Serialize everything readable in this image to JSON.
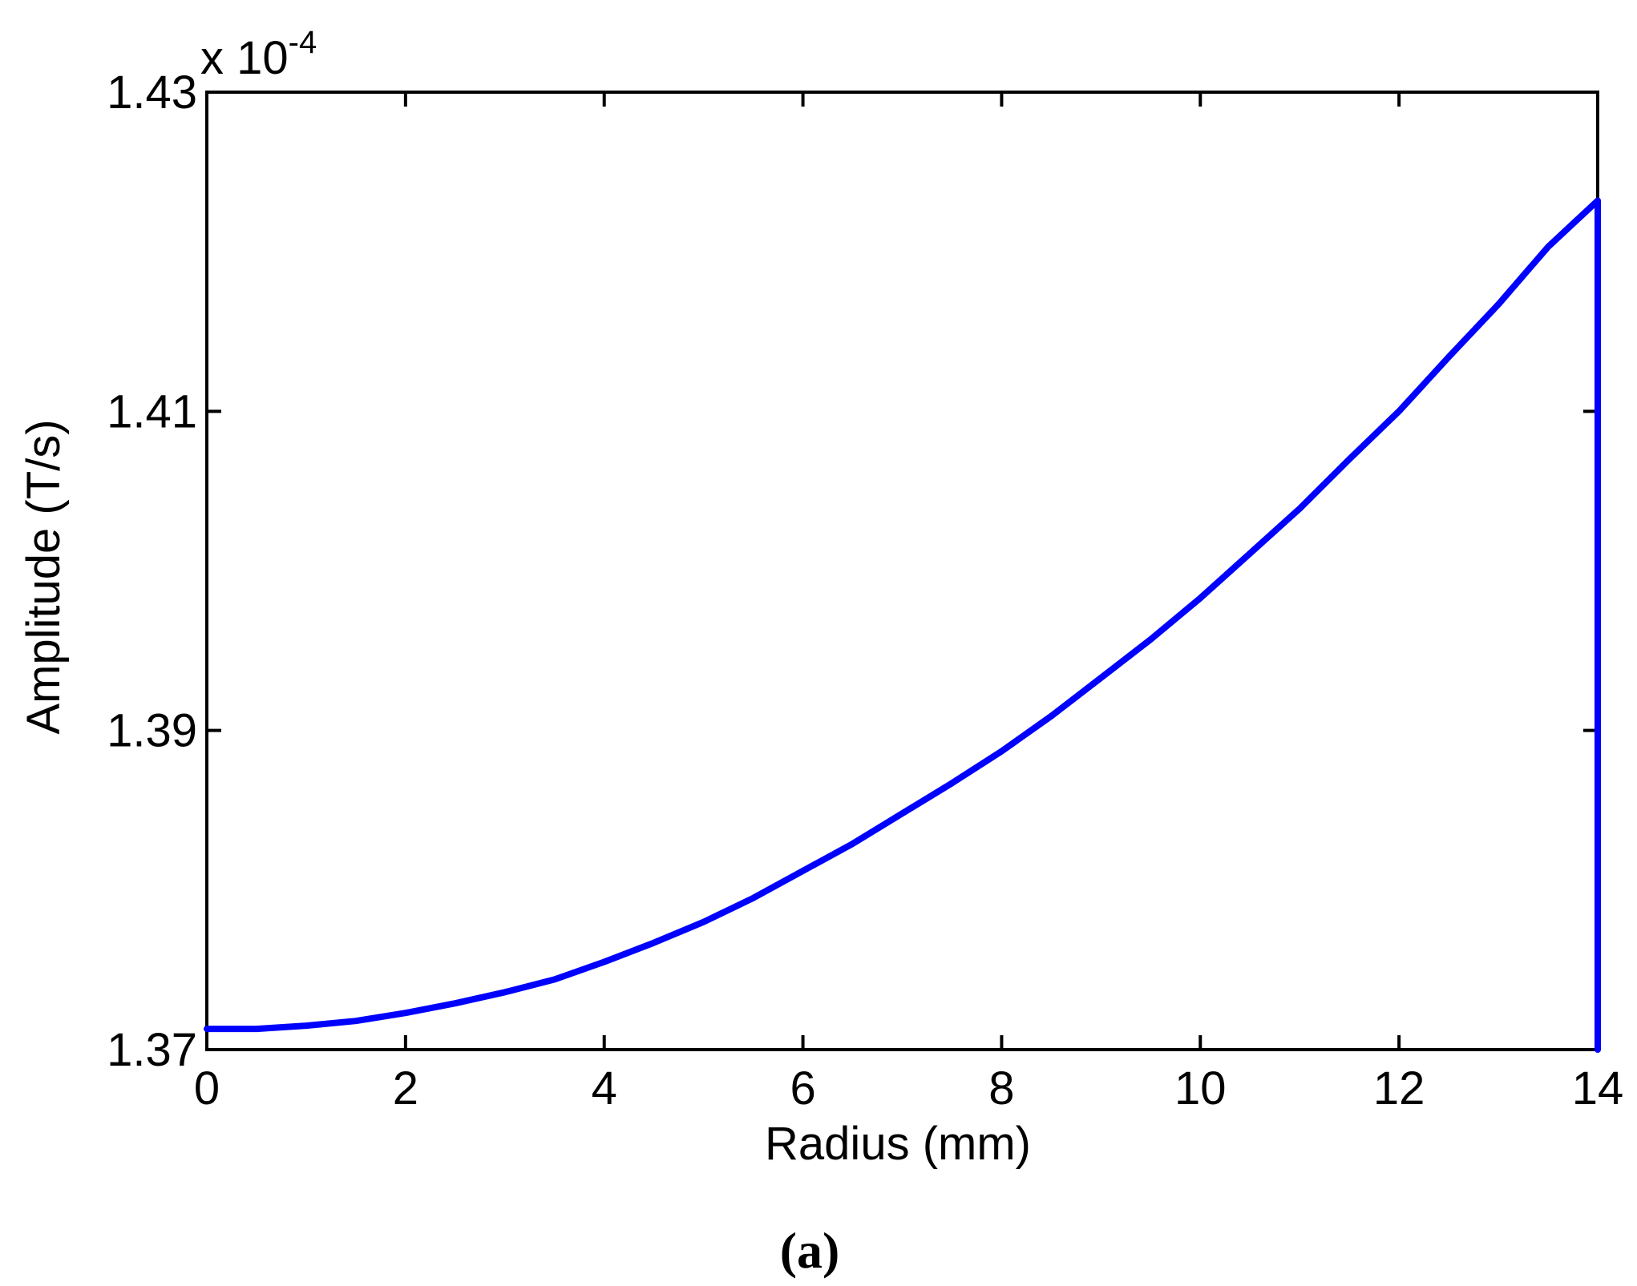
{
  "chart_data": {
    "type": "line",
    "title": "",
    "xlabel": "Radius (mm)",
    "ylabel": "Amplitude (T/s)",
    "y_multiplier_base": "x 10",
    "y_multiplier_exp": "-4",
    "panel_label": "(a)",
    "xlim": [
      0,
      14
    ],
    "ylim": [
      1.37,
      1.43
    ],
    "xticks": [
      0,
      2,
      4,
      6,
      8,
      10,
      12,
      14
    ],
    "xtick_labels": [
      "0",
      "2",
      "4",
      "6",
      "8",
      "10",
      "12",
      "14"
    ],
    "yticks": [
      1.37,
      1.39,
      1.41,
      1.43
    ],
    "ytick_labels": [
      "1.37",
      "1.39",
      "1.41",
      "1.43"
    ],
    "grid": false,
    "line_color": "#0000ff",
    "series": [
      {
        "x": [
          0,
          0.5,
          1,
          1.5,
          2,
          2.5,
          3,
          3.5,
          4,
          4.5,
          5,
          5.5,
          6,
          6.5,
          7,
          7.5,
          8,
          8.5,
          9,
          9.5,
          10,
          10.5,
          11,
          11.5,
          12,
          12.5,
          13,
          13.5,
          14,
          14
        ],
        "y": [
          1.3713,
          1.3713,
          1.3715,
          1.3718,
          1.3723,
          1.3729,
          1.3736,
          1.3744,
          1.3755,
          1.3767,
          1.378,
          1.3795,
          1.3812,
          1.3829,
          1.3848,
          1.3867,
          1.3887,
          1.3909,
          1.3933,
          1.3957,
          1.3983,
          1.4011,
          1.4039,
          1.407,
          1.41,
          1.4134,
          1.4167,
          1.4203,
          1.4232,
          1.37
        ]
      }
    ]
  }
}
